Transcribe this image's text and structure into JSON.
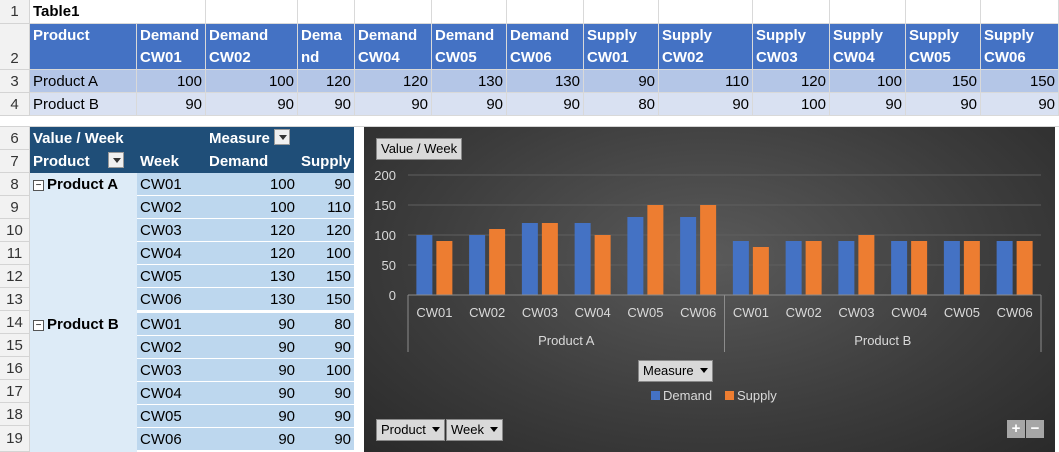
{
  "table1": {
    "title": "Table1",
    "headers": [
      "Product",
      "Demand CW01",
      "Demand CW02",
      "Dema nd",
      "Demand CW04",
      "Demand CW05",
      "Demand CW06",
      "Supply CW01",
      "Supply CW02",
      "Supply CW03",
      "Supply CW04",
      "Supply CW05",
      "Supply CW06"
    ],
    "rows": [
      [
        "Product A",
        "100",
        "100",
        "120",
        "120",
        "130",
        "130",
        "90",
        "110",
        "120",
        "100",
        "150",
        "150"
      ],
      [
        "Product B",
        "90",
        "90",
        "90",
        "90",
        "90",
        "90",
        "80",
        "90",
        "100",
        "90",
        "90",
        "90"
      ]
    ]
  },
  "row_numbers": [
    "1",
    "2",
    "3",
    "4",
    "6",
    "7",
    "8",
    "9",
    "10",
    "11",
    "12",
    "13",
    "14",
    "15",
    "16",
    "17",
    "18",
    "19"
  ],
  "pivot": {
    "corner_label": "Value / Week",
    "measure_label": "Measure",
    "col_product": "Product",
    "col_week": "Week",
    "col_demand": "Demand",
    "col_supply": "Supply",
    "groups": [
      {
        "name": "Product A",
        "rows": [
          [
            "CW01",
            "100",
            "90"
          ],
          [
            "CW02",
            "100",
            "110"
          ],
          [
            "CW03",
            "120",
            "120"
          ],
          [
            "CW04",
            "120",
            "100"
          ],
          [
            "CW05",
            "130",
            "150"
          ],
          [
            "CW06",
            "130",
            "150"
          ]
        ]
      },
      {
        "name": "Product B",
        "rows": [
          [
            "CW01",
            "90",
            "80"
          ],
          [
            "CW02",
            "90",
            "90"
          ],
          [
            "CW03",
            "90",
            "100"
          ],
          [
            "CW04",
            "90",
            "90"
          ],
          [
            "CW05",
            "90",
            "90"
          ],
          [
            "CW06",
            "90",
            "90"
          ]
        ]
      }
    ]
  },
  "chart_data": {
    "type": "bar",
    "title": "",
    "value_button": "Value / Week",
    "measure_button": "Measure",
    "product_button": "Product",
    "week_button": "Week",
    "groups": [
      "Product A",
      "Product B"
    ],
    "categories": [
      "CW01",
      "CW02",
      "CW03",
      "CW04",
      "CW05",
      "CW06",
      "CW01",
      "CW02",
      "CW03",
      "CW04",
      "CW05",
      "CW06"
    ],
    "series": [
      {
        "name": "Demand",
        "color": "#4472c4",
        "values": [
          100,
          100,
          120,
          120,
          130,
          130,
          90,
          90,
          90,
          90,
          90,
          90
        ]
      },
      {
        "name": "Supply",
        "color": "#ed7d31",
        "values": [
          90,
          110,
          120,
          100,
          150,
          150,
          80,
          90,
          100,
          90,
          90,
          90
        ]
      }
    ],
    "ylim": [
      0,
      200
    ],
    "yticks": [
      "0",
      "50",
      "100",
      "150",
      "200"
    ],
    "grid": true,
    "legend_position": "bottom"
  },
  "zoom": {
    "plus": "+",
    "minus": "−"
  }
}
